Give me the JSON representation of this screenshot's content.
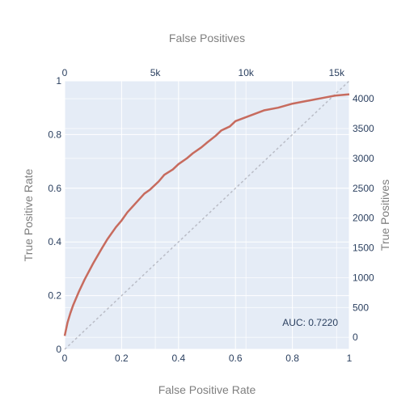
{
  "chart_data": {
    "type": "line",
    "xlabel": "False Positive Rate",
    "ylabel": "True Positive Rate",
    "x2label": "False Positives",
    "y2label": "True Positives",
    "xlim": [
      0,
      1
    ],
    "ylim": [
      0,
      1
    ],
    "x2lim": [
      0,
      15700
    ],
    "y2lim": [
      -200,
      4300
    ],
    "x_ticks": [
      0,
      0.2,
      0.4,
      0.6,
      0.8,
      1
    ],
    "y_ticks": [
      0,
      0.2,
      0.4,
      0.6,
      0.8,
      1
    ],
    "x2_ticks": [
      0,
      5000,
      10000,
      15000
    ],
    "x2_tick_labels": [
      "0",
      "5k",
      "10k",
      "15k"
    ],
    "y2_ticks": [
      0,
      500,
      1000,
      1500,
      2000,
      2500,
      3000,
      3500,
      4000
    ],
    "grid": true,
    "annotation": "AUC: 0.7220",
    "colors": {
      "curve": "#c76b5e",
      "diagonal": "#b9bcc6",
      "plot_bg": "#e5ecf6",
      "grid": "#ffffff"
    },
    "series": [
      {
        "x": [
          0,
          0.01,
          0.02,
          0.03,
          0.05,
          0.07,
          0.1,
          0.13,
          0.15,
          0.18,
          0.2,
          0.22,
          0.25,
          0.28,
          0.3,
          0.33,
          0.35,
          0.38,
          0.4,
          0.43,
          0.45,
          0.48,
          0.5,
          0.53,
          0.55,
          0.58,
          0.6,
          0.65,
          0.7,
          0.75,
          0.8,
          0.85,
          0.9,
          0.95,
          1.0
        ],
        "y": [
          0.05,
          0.1,
          0.135,
          0.165,
          0.215,
          0.26,
          0.32,
          0.375,
          0.41,
          0.455,
          0.48,
          0.51,
          0.545,
          0.58,
          0.595,
          0.625,
          0.65,
          0.67,
          0.69,
          0.712,
          0.73,
          0.752,
          0.77,
          0.795,
          0.815,
          0.83,
          0.85,
          0.87,
          0.89,
          0.9,
          0.915,
          0.925,
          0.935,
          0.945,
          0.95
        ]
      },
      {
        "x": [
          0,
          1
        ],
        "y": [
          0,
          1
        ]
      }
    ]
  }
}
